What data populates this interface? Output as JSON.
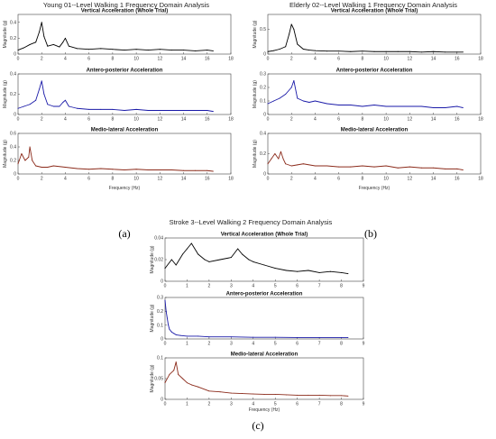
{
  "chart_data": [
    {
      "type": "line",
      "panel_label": "(a)",
      "title": "Young 01--Level Walking 1 Frequency Domain Analysis",
      "xlabel": "Frequency (Hz)",
      "subplots": [
        {
          "subtitle": "Vertical Acceleration (Whole Trial)",
          "ylabel": "Magnitude (g)",
          "color": "#000000",
          "xlim": [
            0,
            18
          ],
          "ylim": [
            0,
            0.5
          ],
          "xticks": [
            0,
            2,
            4,
            6,
            8,
            10,
            12,
            14,
            16,
            18
          ],
          "yticks": [
            0,
            0.2,
            0.4
          ],
          "x": [
            0,
            0.5,
            1,
            1.5,
            1.8,
            2,
            2.2,
            2.5,
            3,
            3.5,
            3.8,
            4,
            4.3,
            5,
            6,
            7,
            8,
            9,
            10,
            11,
            12,
            13,
            14,
            15,
            16,
            16.5
          ],
          "y": [
            0.05,
            0.08,
            0.12,
            0.15,
            0.28,
            0.4,
            0.22,
            0.1,
            0.12,
            0.09,
            0.15,
            0.2,
            0.1,
            0.07,
            0.06,
            0.07,
            0.06,
            0.05,
            0.06,
            0.05,
            0.06,
            0.05,
            0.05,
            0.04,
            0.05,
            0.04
          ]
        },
        {
          "subtitle": "Antero-posterior Acceleration",
          "ylabel": "Magnitude (g)",
          "color": "#1a1aa8",
          "xlim": [
            0,
            18
          ],
          "ylim": [
            0,
            0.4
          ],
          "xticks": [
            0,
            2,
            4,
            6,
            8,
            10,
            12,
            14,
            16,
            18
          ],
          "yticks": [
            0,
            0.2,
            0.4
          ],
          "x": [
            0,
            0.5,
            1,
            1.5,
            1.8,
            2,
            2.2,
            2.5,
            3,
            3.5,
            3.8,
            4,
            4.3,
            5,
            6,
            7,
            8,
            9,
            10,
            11,
            12,
            13,
            14,
            15,
            16,
            16.5
          ],
          "y": [
            0.06,
            0.08,
            0.1,
            0.14,
            0.25,
            0.33,
            0.2,
            0.1,
            0.08,
            0.08,
            0.12,
            0.14,
            0.08,
            0.06,
            0.05,
            0.05,
            0.05,
            0.04,
            0.05,
            0.04,
            0.04,
            0.04,
            0.04,
            0.04,
            0.04,
            0.03
          ]
        },
        {
          "subtitle": "Medio-lateral Acceleration",
          "ylabel": "Magnitude (g)",
          "color": "#8b2a1a",
          "xlim": [
            0,
            18
          ],
          "ylim": [
            0,
            0.6
          ],
          "xticks": [
            0,
            2,
            4,
            6,
            8,
            10,
            12,
            14,
            16,
            18
          ],
          "yticks": [
            0,
            0.2,
            0.4,
            0.6
          ],
          "x": [
            0,
            0.3,
            0.6,
            0.9,
            1,
            1.2,
            1.5,
            2,
            2.5,
            3,
            4,
            5,
            6,
            7,
            8,
            9,
            10,
            11,
            12,
            13,
            14,
            15,
            16,
            16.5
          ],
          "y": [
            0.15,
            0.3,
            0.2,
            0.25,
            0.4,
            0.2,
            0.12,
            0.1,
            0.1,
            0.12,
            0.1,
            0.08,
            0.07,
            0.08,
            0.07,
            0.06,
            0.07,
            0.06,
            0.06,
            0.06,
            0.05,
            0.05,
            0.05,
            0.04
          ]
        }
      ]
    },
    {
      "type": "line",
      "panel_label": "(b)",
      "title": "Elderly 02--Level Walking 1 Frequency Domain Analysis",
      "xlabel": "Frequency (Hz)",
      "subplots": [
        {
          "subtitle": "Vertical Acceleration (Whole Trial)",
          "ylabel": "Magnitude (g)",
          "color": "#000000",
          "xlim": [
            0,
            18
          ],
          "ylim": [
            0,
            0.8
          ],
          "xticks": [
            0,
            2,
            4,
            6,
            8,
            10,
            12,
            14,
            16,
            18
          ],
          "yticks": [
            0,
            0.5
          ],
          "x": [
            0,
            0.5,
            1,
            1.5,
            1.8,
            2,
            2.2,
            2.5,
            3,
            3.5,
            4,
            5,
            6,
            7,
            8,
            9,
            10,
            11,
            12,
            13,
            14,
            15,
            16,
            16.5
          ],
          "y": [
            0.05,
            0.07,
            0.1,
            0.15,
            0.4,
            0.6,
            0.5,
            0.2,
            0.1,
            0.08,
            0.07,
            0.06,
            0.06,
            0.05,
            0.06,
            0.05,
            0.05,
            0.05,
            0.05,
            0.04,
            0.05,
            0.04,
            0.04,
            0.04
          ]
        },
        {
          "subtitle": "Antero-posterior Acceleration",
          "ylabel": "Magnitude (g)",
          "color": "#1a1aa8",
          "xlim": [
            0,
            18
          ],
          "ylim": [
            0,
            0.3
          ],
          "xticks": [
            0,
            2,
            4,
            6,
            8,
            10,
            12,
            14,
            16,
            18
          ],
          "yticks": [
            0,
            0.1,
            0.2,
            0.3
          ],
          "x": [
            0,
            0.5,
            1,
            1.5,
            2,
            2.2,
            2.5,
            3,
            3.5,
            4,
            5,
            6,
            7,
            8,
            9,
            10,
            11,
            12,
            13,
            14,
            15,
            16,
            16.5
          ],
          "y": [
            0.08,
            0.1,
            0.12,
            0.15,
            0.2,
            0.25,
            0.12,
            0.1,
            0.09,
            0.1,
            0.08,
            0.07,
            0.07,
            0.06,
            0.07,
            0.06,
            0.06,
            0.06,
            0.06,
            0.05,
            0.05,
            0.06,
            0.05
          ]
        },
        {
          "subtitle": "Medio-lateral Acceleration",
          "ylabel": "Magnitude (g)",
          "color": "#8b2a1a",
          "xlim": [
            0,
            18
          ],
          "ylim": [
            0,
            0.4
          ],
          "xticks": [
            0,
            2,
            4,
            6,
            8,
            10,
            12,
            14,
            16,
            18
          ],
          "yticks": [
            0,
            0.2,
            0.4
          ],
          "x": [
            0,
            0.3,
            0.6,
            0.9,
            1.1,
            1.3,
            1.5,
            2,
            2.5,
            3,
            4,
            5,
            6,
            7,
            8,
            9,
            10,
            11,
            12,
            13,
            14,
            15,
            16,
            16.5
          ],
          "y": [
            0.1,
            0.15,
            0.2,
            0.15,
            0.22,
            0.15,
            0.1,
            0.08,
            0.09,
            0.1,
            0.08,
            0.08,
            0.07,
            0.07,
            0.08,
            0.07,
            0.08,
            0.06,
            0.07,
            0.06,
            0.06,
            0.05,
            0.05,
            0.04
          ]
        }
      ]
    },
    {
      "type": "line",
      "panel_label": "(c)",
      "title": "Stroke 3--Level Walking 2 Frequency Domain Analysis",
      "xlabel": "Frequency (Hz)",
      "subplots": [
        {
          "subtitle": "Vertical Acceleration (Whole Trial)",
          "ylabel": "Magnitude (g)",
          "color": "#000000",
          "xlim": [
            0,
            9
          ],
          "ylim": [
            0,
            0.04
          ],
          "xticks": [
            0,
            1,
            2,
            3,
            4,
            5,
            6,
            7,
            8,
            9
          ],
          "yticks": [
            0,
            0.02,
            0.04
          ],
          "x": [
            0,
            0.3,
            0.5,
            0.8,
            1,
            1.2,
            1.5,
            1.8,
            2,
            2.5,
            3,
            3.3,
            3.5,
            3.8,
            4,
            4.5,
            5,
            5.5,
            6,
            6.5,
            7,
            7.5,
            8,
            8.3
          ],
          "y": [
            0.012,
            0.02,
            0.015,
            0.025,
            0.03,
            0.035,
            0.025,
            0.02,
            0.018,
            0.02,
            0.022,
            0.03,
            0.025,
            0.02,
            0.018,
            0.015,
            0.012,
            0.01,
            0.009,
            0.01,
            0.008,
            0.009,
            0.008,
            0.007
          ]
        },
        {
          "subtitle": "Antero-posterior Acceleration",
          "ylabel": "Magnitude (g)",
          "color": "#1a1aa8",
          "xlim": [
            0,
            9
          ],
          "ylim": [
            0,
            0.3
          ],
          "xticks": [
            0,
            1,
            2,
            3,
            4,
            5,
            6,
            7,
            8,
            9
          ],
          "yticks": [
            0,
            0.1,
            0.2,
            0.3
          ],
          "x": [
            0,
            0.05,
            0.1,
            0.15,
            0.2,
            0.3,
            0.4,
            0.5,
            0.7,
            1,
            1.5,
            2,
            3,
            4,
            5,
            6,
            7,
            8,
            8.3
          ],
          "y": [
            0.28,
            0.2,
            0.15,
            0.1,
            0.07,
            0.05,
            0.04,
            0.03,
            0.025,
            0.02,
            0.02,
            0.015,
            0.015,
            0.012,
            0.012,
            0.01,
            0.01,
            0.01,
            0.01
          ]
        },
        {
          "subtitle": "Medio-lateral Acceleration",
          "ylabel": "Magnitude (g)",
          "color": "#8b2a1a",
          "xlim": [
            0,
            9
          ],
          "ylim": [
            0,
            0.1
          ],
          "xticks": [
            0,
            1,
            2,
            3,
            4,
            5,
            6,
            7,
            8,
            9
          ],
          "yticks": [
            0,
            0.05,
            0.1
          ],
          "x": [
            0,
            0.2,
            0.4,
            0.5,
            0.6,
            0.8,
            1,
            1.2,
            1.5,
            2,
            2.5,
            3,
            3.5,
            4,
            4.5,
            5,
            5.5,
            6,
            6.5,
            7,
            7.5,
            8,
            8.3
          ],
          "y": [
            0.04,
            0.06,
            0.07,
            0.09,
            0.06,
            0.05,
            0.04,
            0.035,
            0.03,
            0.02,
            0.018,
            0.015,
            0.014,
            0.013,
            0.012,
            0.012,
            0.011,
            0.01,
            0.01,
            0.01,
            0.009,
            0.009,
            0.008
          ]
        }
      ]
    }
  ]
}
